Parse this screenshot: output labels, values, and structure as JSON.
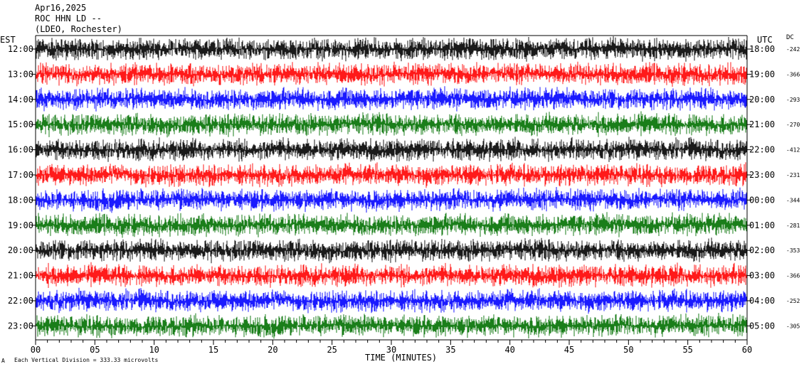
{
  "header": {
    "date": "Apr16,2025",
    "station": "ROC HHN LD --",
    "location": "(LDEO, Rochester)"
  },
  "labels": {
    "left_tz": "EST",
    "right_tz": "UTC",
    "dc_header": "DC",
    "x_axis_title": "TIME (MINUTES)",
    "footer_note": "Each Vertical Division =  333.33 microvolts",
    "footer_mark": "A"
  },
  "chart_data": {
    "type": "line",
    "title": "ROC HHN LD --",
    "xlabel": "TIME (MINUTES)",
    "ylabel": "EST",
    "xlim": [
      0,
      60
    ],
    "x_ticks": [
      "00",
      "05",
      "10",
      "15",
      "20",
      "25",
      "30",
      "35",
      "40",
      "45",
      "50",
      "55",
      "60"
    ],
    "trace_colors": [
      "#000000",
      "#ff0000",
      "#0000ff",
      "#007000"
    ],
    "rows": [
      {
        "est": "12:00",
        "utc": "18:00",
        "dc": "-242",
        "color": "#000000"
      },
      {
        "est": "13:00",
        "utc": "19:00",
        "dc": "-366",
        "color": "#ff0000"
      },
      {
        "est": "14:00",
        "utc": "20:00",
        "dc": "-293",
        "color": "#0000ff"
      },
      {
        "est": "15:00",
        "utc": "21:00",
        "dc": "-270",
        "color": "#007000"
      },
      {
        "est": "16:00",
        "utc": "22:00",
        "dc": "-412",
        "color": "#000000"
      },
      {
        "est": "17:00",
        "utc": "23:00",
        "dc": "-231",
        "color": "#ff0000"
      },
      {
        "est": "18:00",
        "utc": "00:00",
        "dc": "-344",
        "color": "#0000ff"
      },
      {
        "est": "19:00",
        "utc": "01:00",
        "dc": "-281",
        "color": "#007000"
      },
      {
        "est": "20:00",
        "utc": "02:00",
        "dc": "-353",
        "color": "#000000"
      },
      {
        "est": "21:00",
        "utc": "03:00",
        "dc": "-366",
        "color": "#ff0000"
      },
      {
        "est": "22:00",
        "utc": "04:00",
        "dc": "-252",
        "color": "#0000ff"
      },
      {
        "est": "23:00",
        "utc": "05:00",
        "dc": "-305",
        "color": "#007000"
      }
    ]
  }
}
